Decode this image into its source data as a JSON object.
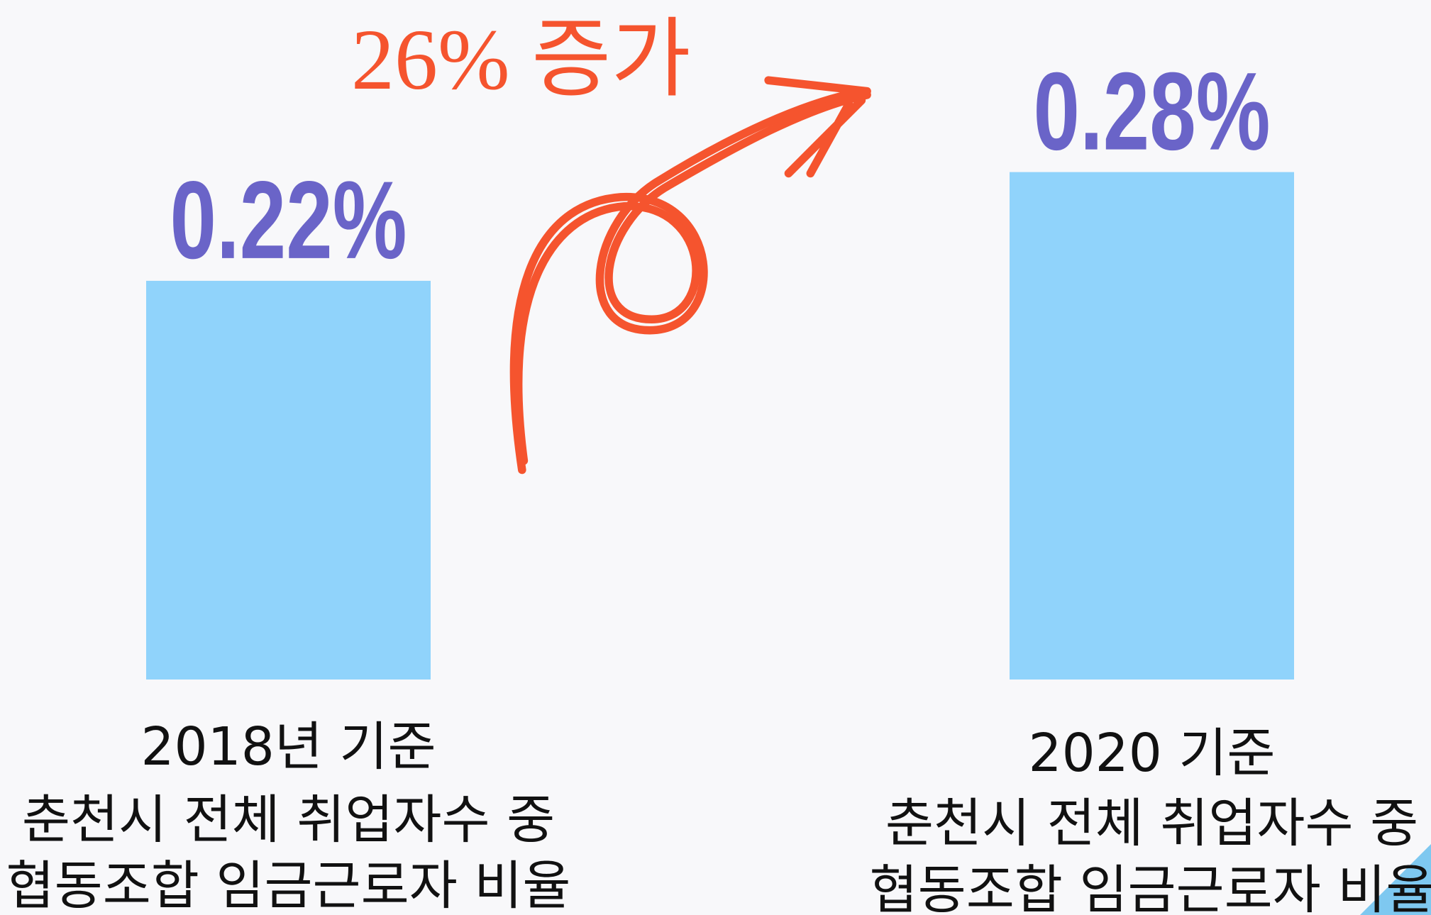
{
  "chart_data": {
    "type": "bar",
    "categories": [
      [
        "2018년 기준",
        "춘천시 전체 취업자수 중",
        "협동조합 임금근로자 비율"
      ],
      [
        "2020 기준",
        "춘천시 전체 취업자수 중",
        "협동조합 임금근로자 비율"
      ]
    ],
    "values": [
      0.22,
      0.28
    ],
    "value_labels": [
      "0.22%",
      "0.28%"
    ],
    "color": "#90d3fb",
    "label_color": "#6a64c8",
    "annotation": "26% 증가",
    "annotation_color": "#f5542e"
  }
}
